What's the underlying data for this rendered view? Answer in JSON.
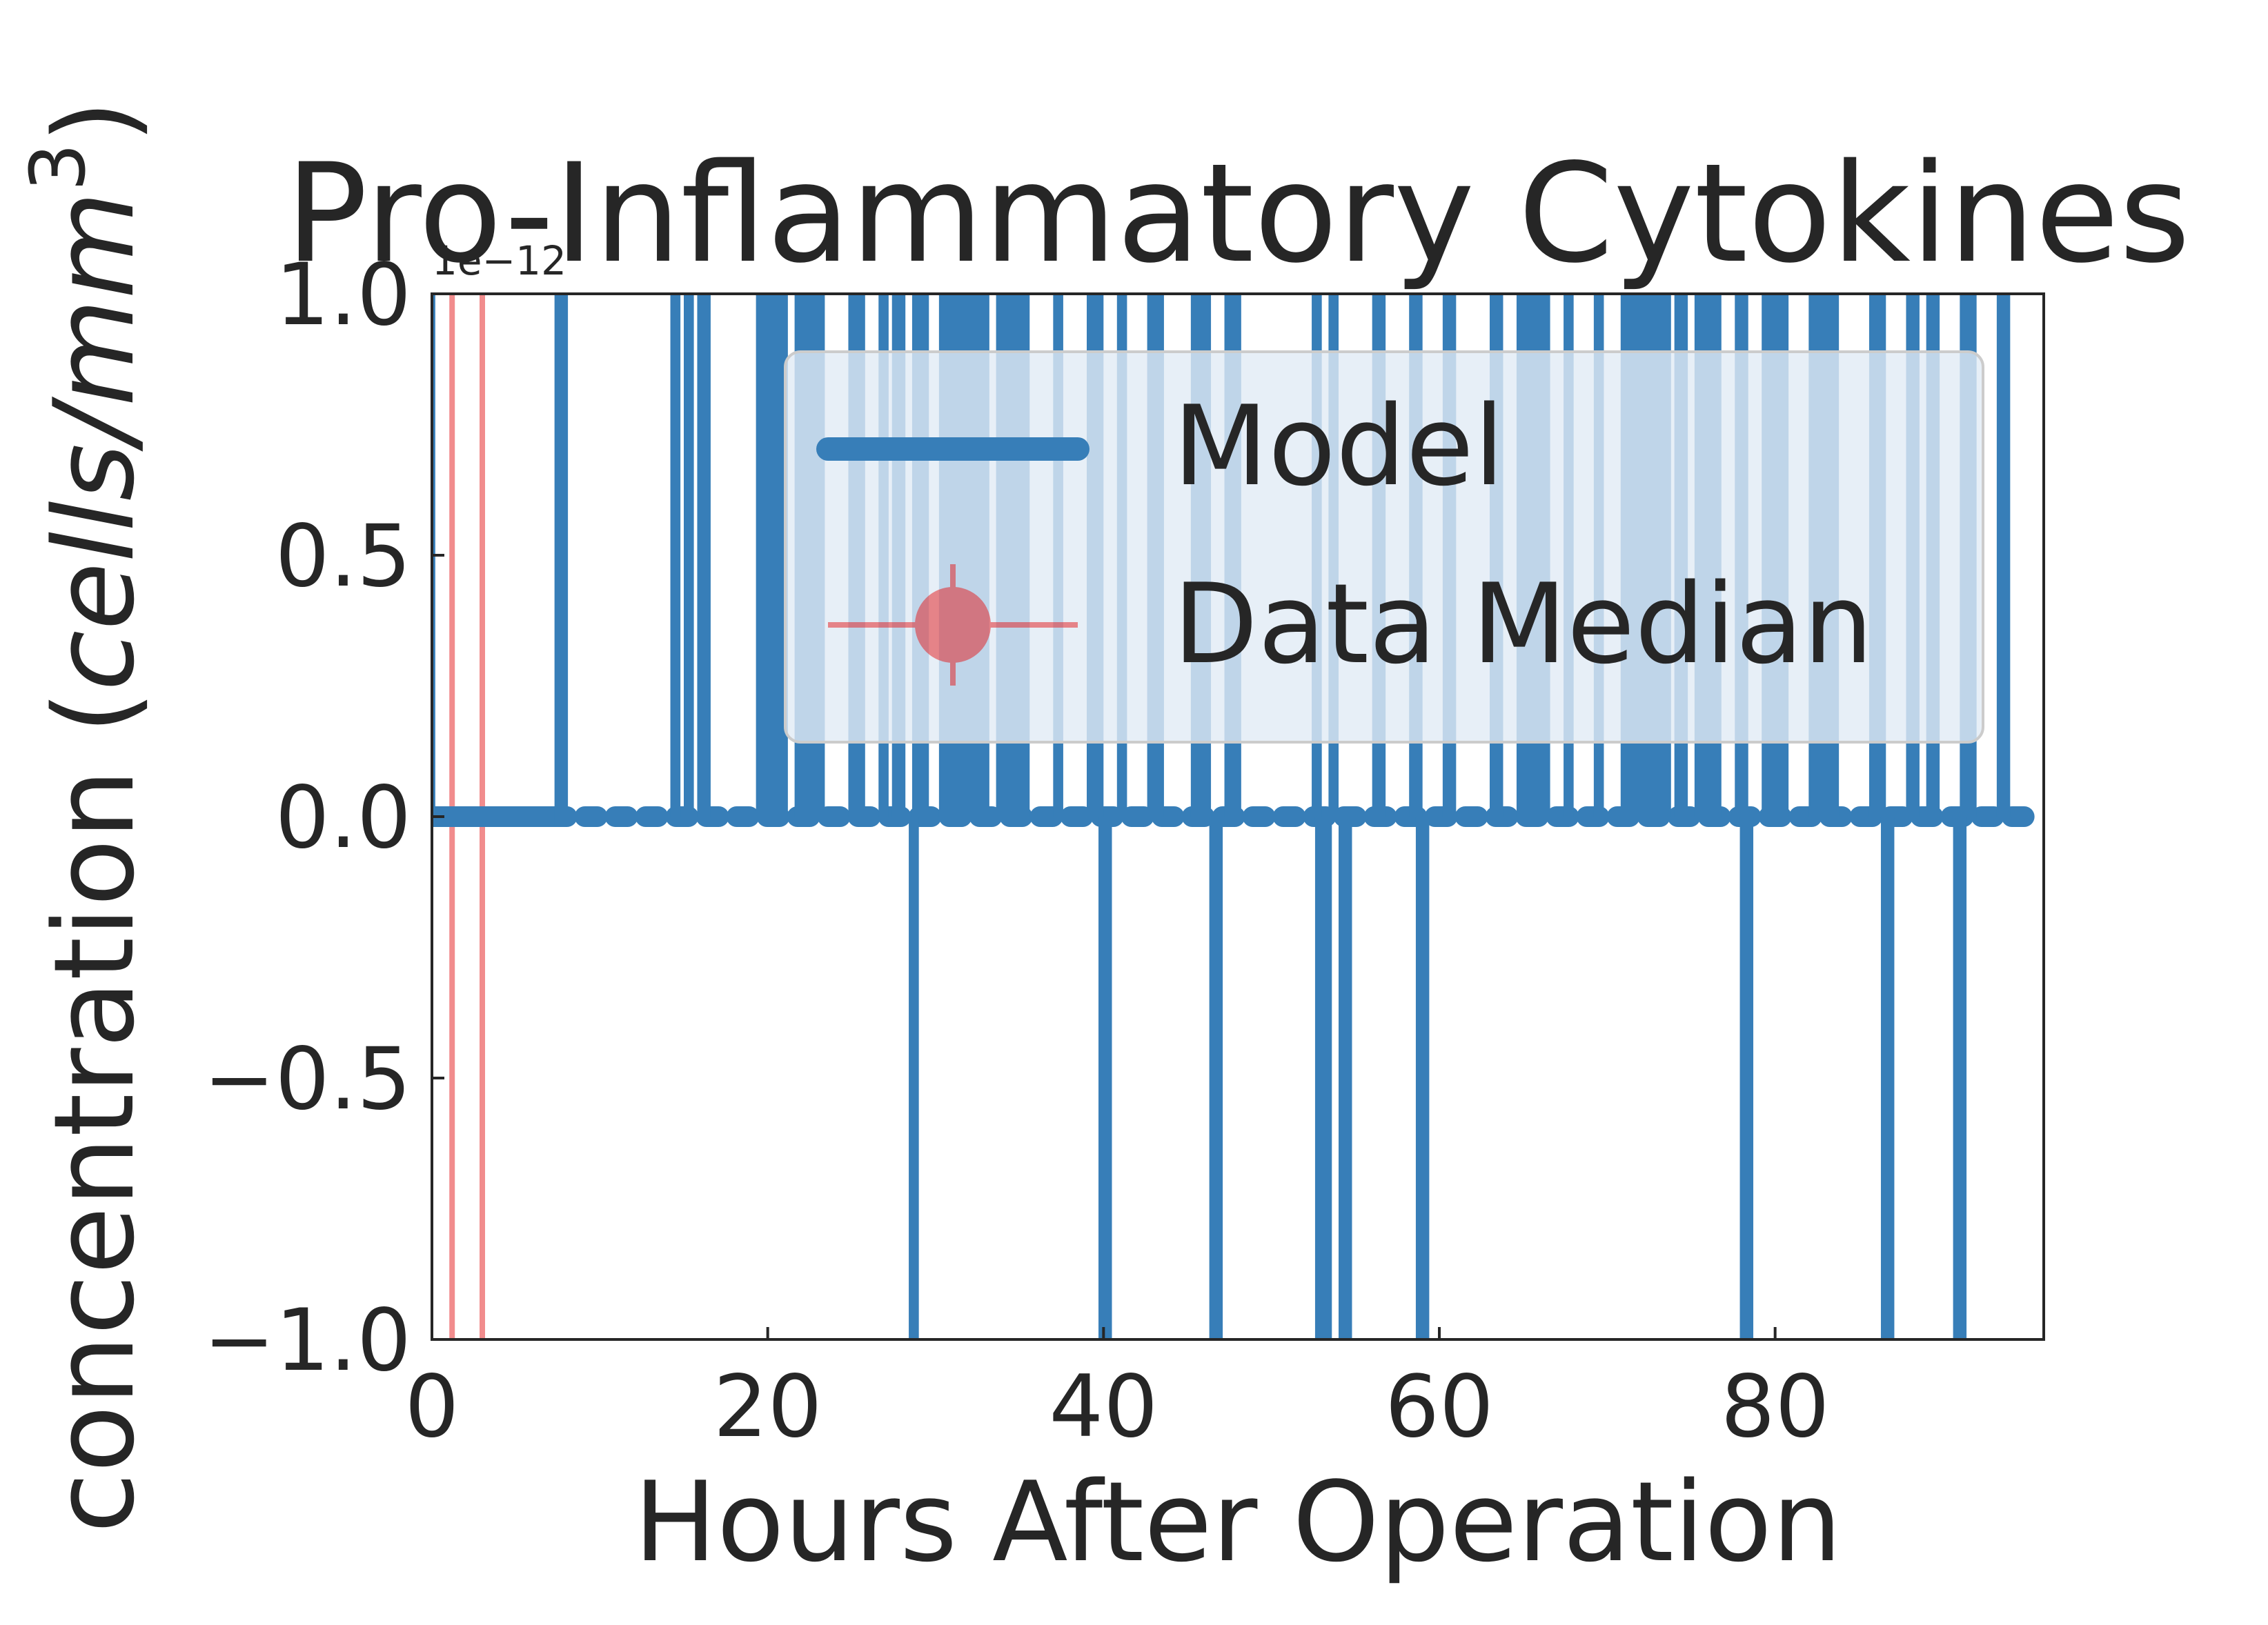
{
  "chart_data": {
    "type": "line",
    "title": "Pro-Inflammatory Cytokines",
    "xlabel": "Hours After Operation",
    "ylabel": "concentration (cells/mm³)",
    "ylabel_parts": {
      "prefix": "concentration (",
      "unit": "cells/mm",
      "power": "3",
      "suffix": ")"
    },
    "offset_text": "1e−12",
    "xlim": [
      0,
      96
    ],
    "ylim": [
      -1.0,
      1.0
    ],
    "xticks": [
      0,
      20,
      40,
      60,
      80
    ],
    "xtick_labels": [
      "0",
      "20",
      "40",
      "60",
      "80"
    ],
    "yticks": [
      -1.0,
      -0.5,
      0.0,
      0.5,
      1.0
    ],
    "ytick_labels": [
      "−1.0",
      "−0.5",
      "0.0",
      "0.5",
      "1.0"
    ],
    "grid": false,
    "legend": {
      "placement": "upper right",
      "entries": [
        "Model",
        "Data Median"
      ]
    },
    "series": [
      {
        "name": "Model",
        "color": "#377eb8",
        "baseline": 0.0,
        "segments_up": [
          [
            0,
            0.2
          ],
          [
            7.3,
            8.1
          ],
          [
            14.2,
            14.8
          ],
          [
            15.0,
            15.6
          ],
          [
            15.8,
            16.6
          ],
          [
            19.3,
            21.2
          ],
          [
            21.6,
            23.4
          ],
          [
            24.8,
            25.8
          ],
          [
            26.6,
            27.2
          ],
          [
            27.4,
            28.2
          ],
          [
            28.6,
            29.6
          ],
          [
            30.2,
            33.2
          ],
          [
            33.6,
            35.6
          ],
          [
            37.0,
            37.6
          ],
          [
            39.0,
            40.0
          ],
          [
            40.8,
            41.4
          ],
          [
            42.6,
            43.6
          ],
          [
            45.2,
            46.4
          ],
          [
            47.2,
            48.2
          ],
          [
            52.4,
            53.0
          ],
          [
            53.4,
            54.0
          ],
          [
            56.0,
            56.8
          ],
          [
            58.2,
            59.0
          ],
          [
            60.2,
            61.0
          ],
          [
            63.0,
            63.8
          ],
          [
            64.6,
            66.6
          ],
          [
            67.4,
            68.0
          ],
          [
            69.2,
            69.8
          ],
          [
            70.8,
            73.8
          ],
          [
            74.0,
            74.8
          ],
          [
            75.2,
            76.8
          ],
          [
            77.6,
            78.4
          ],
          [
            79.2,
            80.8
          ],
          [
            82.0,
            83.8
          ],
          [
            85.6,
            86.6
          ],
          [
            87.8,
            88.6
          ],
          [
            89.0,
            89.8
          ],
          [
            91.0,
            92.0
          ],
          [
            93.2,
            94.0
          ]
        ],
        "segments_down": [
          [
            28.4,
            29.0
          ],
          [
            39.7,
            40.5
          ],
          [
            46.3,
            47.1
          ],
          [
            52.6,
            53.6
          ],
          [
            54.0,
            54.8
          ],
          [
            58.6,
            59.4
          ],
          [
            77.9,
            78.7
          ],
          [
            86.3,
            87.1
          ],
          [
            90.6,
            91.4
          ]
        ],
        "dot_range": [
          7.3,
          95
        ]
      },
      {
        "name": "Data Median",
        "color": "#e41a1c",
        "x": [
          1.2,
          3.0
        ],
        "y": [
          0.0,
          0.0
        ],
        "errorbar": "vertical, spans full y range"
      }
    ]
  }
}
